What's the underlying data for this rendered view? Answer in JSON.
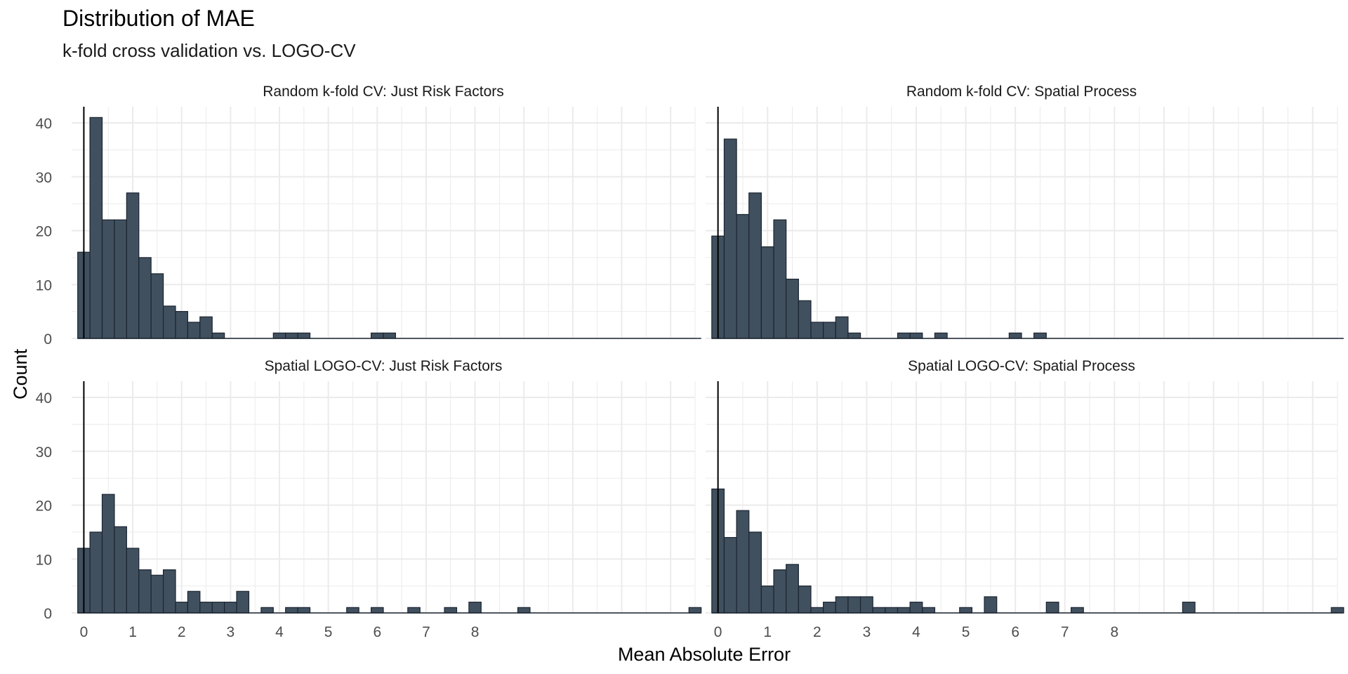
{
  "title": "Distribution of MAE",
  "subtitle": "k-fold cross validation vs. LOGO-CV",
  "colors": {
    "bar_fill": "#41505f",
    "bar_stroke": "#1a2430",
    "grid": "#ebebeb",
    "axis": "#000000"
  },
  "chart_data": {
    "type": "bar",
    "xlabel": "Mean Absolute Error",
    "ylabel": "Count",
    "xlim": [
      -0.25,
      12.5
    ],
    "ylim": [
      0,
      43
    ],
    "x_ticks": [
      "0",
      "1",
      "2",
      "3",
      "4",
      "5",
      "6",
      "7",
      "8"
    ],
    "y_ticks": [
      "0",
      "10",
      "20",
      "30",
      "40"
    ],
    "bin_width": 0.25,
    "bin_start": -0.125,
    "grid": true,
    "zero_line": true,
    "panels": [
      {
        "label": "Random k-fold CV: Just Risk Factors",
        "counts": [
          16,
          41,
          22,
          22,
          27,
          15,
          12,
          6,
          5,
          3,
          4,
          1,
          0,
          0,
          0,
          0,
          1,
          1,
          1,
          0,
          0,
          0,
          0,
          0,
          1,
          1,
          0,
          0,
          0,
          0,
          0,
          0,
          0,
          0,
          0,
          0,
          0,
          0,
          0,
          0,
          0,
          0,
          0,
          0,
          0,
          0,
          0,
          0,
          0,
          0,
          0
        ]
      },
      {
        "label": "Random k-fold CV: Spatial Process",
        "counts": [
          19,
          37,
          23,
          27,
          17,
          22,
          11,
          7,
          3,
          3,
          4,
          1,
          0,
          0,
          0,
          1,
          1,
          0,
          1,
          0,
          0,
          0,
          0,
          0,
          1,
          0,
          1,
          0,
          0,
          0,
          0,
          0,
          0,
          0,
          0,
          0,
          0,
          0,
          0,
          0,
          0,
          0,
          0,
          0,
          0,
          0,
          0,
          0,
          0,
          0,
          0
        ]
      },
      {
        "label": "Spatial LOGO-CV: Just Risk Factors",
        "counts": [
          12,
          15,
          22,
          16,
          12,
          8,
          7,
          8,
          2,
          4,
          2,
          2,
          2,
          4,
          0,
          1,
          0,
          1,
          1,
          0,
          0,
          0,
          1,
          0,
          1,
          0,
          0,
          1,
          0,
          0,
          1,
          0,
          2,
          0,
          0,
          0,
          1,
          0,
          0,
          0,
          0,
          0,
          0,
          0,
          0,
          0,
          0,
          0,
          0,
          0,
          1
        ]
      },
      {
        "label": "Spatial LOGO-CV: Spatial Process",
        "counts": [
          23,
          14,
          19,
          15,
          5,
          8,
          9,
          5,
          1,
          2,
          3,
          3,
          3,
          1,
          1,
          1,
          2,
          1,
          0,
          0,
          1,
          0,
          3,
          0,
          0,
          0,
          0,
          2,
          0,
          1,
          0,
          0,
          0,
          0,
          0,
          0,
          0,
          0,
          2,
          0,
          0,
          0,
          0,
          0,
          0,
          0,
          0,
          0,
          0,
          0,
          1
        ]
      }
    ]
  }
}
